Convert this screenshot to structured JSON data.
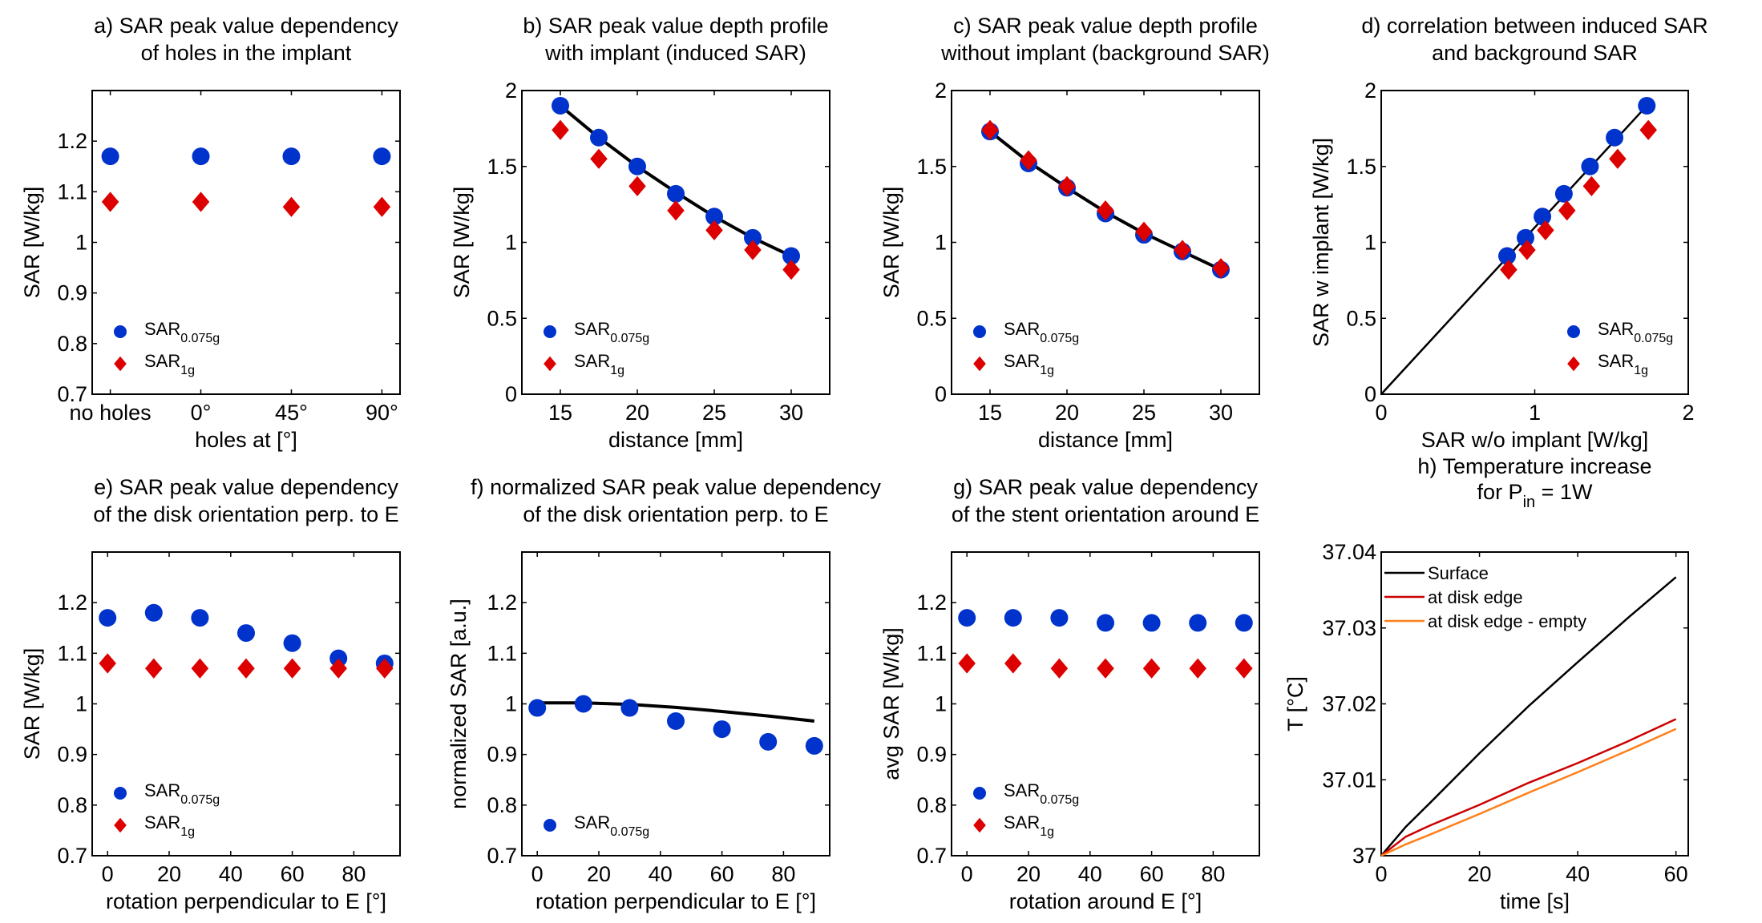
{
  "figure": {
    "colors": {
      "sar_small": "#0033cc",
      "sar_1g": "#dd0000",
      "fit_line": "#000000",
      "surface": "#000000",
      "disk_edge": "#cc0000",
      "disk_edge_empty": "#ff7f1a"
    }
  },
  "chart_data": [
    {
      "id": "a",
      "type": "scatter",
      "title": [
        "a) SAR peak value dependency",
        "of holes in the implant"
      ],
      "xlabel": "holes at [°]",
      "ylabel": "SAR [W/kg]",
      "categories": [
        "no holes",
        "0°",
        "45°",
        "90°"
      ],
      "xlim": [
        0.8,
        4.2
      ],
      "ylim": [
        0.7,
        1.3
      ],
      "yticks": [
        0.7,
        0.8,
        0.9,
        1,
        1.1,
        1.2
      ],
      "ytick_labels": [
        "0.7",
        "0.8",
        "0.9",
        "1",
        "1.1",
        "1.2"
      ],
      "x": [
        1,
        2,
        3,
        4
      ],
      "series": [
        {
          "name": "SAR",
          "sub": "0.075g",
          "marker": "circle",
          "color_key": "sar_small",
          "values": [
            1.17,
            1.17,
            1.17,
            1.17
          ]
        },
        {
          "name": "SAR",
          "sub": "1g",
          "marker": "diamond",
          "color_key": "sar_1g",
          "values": [
            1.08,
            1.08,
            1.07,
            1.07
          ]
        }
      ],
      "legend": "bottom-left",
      "grid": false
    },
    {
      "id": "b",
      "type": "scatter",
      "title": [
        "b) SAR peak value depth profile",
        "with implant (induced SAR)"
      ],
      "xlabel": "distance [mm]",
      "ylabel": "SAR [W/kg]",
      "xlim": [
        12.5,
        32.5
      ],
      "ylim": [
        0,
        2
      ],
      "xticks": [
        15,
        20,
        25,
        30
      ],
      "xtick_labels": [
        "15",
        "20",
        "25",
        "30"
      ],
      "yticks": [
        0,
        0.5,
        1,
        1.5,
        2
      ],
      "ytick_labels": [
        "0",
        "0.5",
        "1",
        "1.5",
        "2"
      ],
      "x": [
        15,
        17.5,
        20,
        22.5,
        25,
        27.5,
        30
      ],
      "series": [
        {
          "name": "SAR",
          "sub": "0.075g",
          "marker": "circle",
          "color_key": "sar_small",
          "values": [
            1.9,
            1.69,
            1.5,
            1.32,
            1.17,
            1.03,
            0.91
          ]
        },
        {
          "name": "SAR",
          "sub": "1g",
          "marker": "diamond",
          "color_key": "sar_1g",
          "values": [
            1.74,
            1.55,
            1.37,
            1.21,
            1.08,
            0.95,
            0.82
          ]
        }
      ],
      "fit_line": {
        "x": [
          15,
          17.5,
          20,
          22.5,
          25,
          27.5,
          30
        ],
        "y": [
          1.9,
          1.69,
          1.5,
          1.33,
          1.17,
          1.03,
          0.91
        ]
      },
      "legend": "bottom-left",
      "grid": false
    },
    {
      "id": "c",
      "type": "scatter",
      "title": [
        "c) SAR peak value depth profile",
        "without implant (background SAR)"
      ],
      "xlabel": "distance [mm]",
      "ylabel": "SAR [W/kg]",
      "xlim": [
        12.5,
        32.5
      ],
      "ylim": [
        0,
        2
      ],
      "xticks": [
        15,
        20,
        25,
        30
      ],
      "xtick_labels": [
        "15",
        "20",
        "25",
        "30"
      ],
      "yticks": [
        0,
        0.5,
        1,
        1.5,
        2
      ],
      "ytick_labels": [
        "0",
        "0.5",
        "1",
        "1.5",
        "2"
      ],
      "x": [
        15,
        17.5,
        20,
        22.5,
        25,
        27.5,
        30
      ],
      "series": [
        {
          "name": "SAR",
          "sub": "0.075g",
          "marker": "circle",
          "color_key": "sar_small",
          "values": [
            1.73,
            1.52,
            1.36,
            1.19,
            1.05,
            0.94,
            0.82
          ]
        },
        {
          "name": "SAR",
          "sub": "1g",
          "marker": "diamond",
          "color_key": "sar_1g",
          "values": [
            1.74,
            1.54,
            1.37,
            1.21,
            1.07,
            0.95,
            0.83
          ]
        }
      ],
      "fit_line": {
        "x": [
          15,
          17.5,
          20,
          22.5,
          25,
          27.5,
          30
        ],
        "y": [
          1.73,
          1.53,
          1.36,
          1.2,
          1.06,
          0.94,
          0.82
        ]
      },
      "legend": "bottom-left",
      "grid": false
    },
    {
      "id": "d",
      "type": "scatter",
      "title": [
        "d) correlation between induced SAR",
        "and background SAR"
      ],
      "xlabel": "SAR w/o implant [W/kg]",
      "ylabel": "SAR w implant [W/kg]",
      "xlim": [
        0,
        2
      ],
      "ylim": [
        0,
        2
      ],
      "xticks": [
        0,
        1,
        2
      ],
      "xtick_labels": [
        "0",
        "1",
        "2"
      ],
      "yticks": [
        0,
        0.5,
        1,
        1.5,
        2
      ],
      "ytick_labels": [
        "0",
        "0.5",
        "1",
        "1.5",
        "2"
      ],
      "series": [
        {
          "name": "SAR",
          "sub": "0.075g",
          "marker": "circle",
          "color_key": "sar_small",
          "x": [
            0.82,
            0.94,
            1.05,
            1.19,
            1.36,
            1.52,
            1.73
          ],
          "values": [
            0.91,
            1.03,
            1.17,
            1.32,
            1.5,
            1.69,
            1.9
          ]
        },
        {
          "name": "SAR",
          "sub": "1g",
          "marker": "diamond",
          "color_key": "sar_1g",
          "x": [
            0.83,
            0.95,
            1.07,
            1.21,
            1.37,
            1.54,
            1.74
          ],
          "values": [
            0.82,
            0.95,
            1.08,
            1.21,
            1.37,
            1.55,
            1.74
          ]
        }
      ],
      "fit_line": {
        "x": [
          0,
          1.73
        ],
        "y": [
          0,
          1.9
        ]
      },
      "legend": "bottom-right",
      "grid": false
    },
    {
      "id": "e",
      "type": "scatter",
      "title": [
        "e) SAR peak value dependency",
        "of the disk orientation perp. to E"
      ],
      "xlabel": "rotation perpendicular to E [°]",
      "ylabel": "SAR [W/kg]",
      "xlim": [
        -5,
        95
      ],
      "ylim": [
        0.7,
        1.3
      ],
      "xticks": [
        0,
        20,
        40,
        60,
        80
      ],
      "xtick_labels": [
        "0",
        "20",
        "40",
        "60",
        "80"
      ],
      "yticks": [
        0.7,
        0.8,
        0.9,
        1,
        1.1,
        1.2
      ],
      "ytick_labels": [
        "0.7",
        "0.8",
        "0.9",
        "1",
        "1.1",
        "1.2"
      ],
      "x": [
        0,
        15,
        30,
        45,
        60,
        75,
        90
      ],
      "series": [
        {
          "name": "SAR",
          "sub": "0.075g",
          "marker": "circle",
          "color_key": "sar_small",
          "values": [
            1.17,
            1.18,
            1.17,
            1.14,
            1.12,
            1.09,
            1.08
          ]
        },
        {
          "name": "SAR",
          "sub": "1g",
          "marker": "diamond",
          "color_key": "sar_1g",
          "values": [
            1.08,
            1.07,
            1.07,
            1.07,
            1.07,
            1.07,
            1.07
          ]
        }
      ],
      "legend": "bottom-left",
      "grid": false
    },
    {
      "id": "f",
      "type": "scatter",
      "title": [
        "f) normalized SAR peak value dependency",
        "of the disk orientation perp. to E"
      ],
      "xlabel": "rotation perpendicular to E [°]",
      "ylabel": "normalized SAR [a.u.]",
      "xlim": [
        -5,
        95
      ],
      "ylim": [
        0.7,
        1.3
      ],
      "xticks": [
        0,
        20,
        40,
        60,
        80
      ],
      "xtick_labels": [
        "0",
        "20",
        "40",
        "60",
        "80"
      ],
      "yticks": [
        0.7,
        0.8,
        0.9,
        1,
        1.1,
        1.2
      ],
      "ytick_labels": [
        "0.7",
        "0.8",
        "0.9",
        "1",
        "1.1",
        "1.2"
      ],
      "x": [
        0,
        15,
        30,
        45,
        60,
        75,
        90
      ],
      "series": [
        {
          "name": "SAR",
          "sub": "0.075g",
          "marker": "circle",
          "color_key": "sar_small",
          "values": [
            0.992,
            1.0,
            0.992,
            0.966,
            0.95,
            0.925,
            0.917
          ]
        }
      ],
      "fit_line": {
        "x": [
          0,
          15,
          30,
          45,
          60,
          75,
          90
        ],
        "y": [
          1.002,
          1.002,
          0.999,
          0.993,
          0.985,
          0.976,
          0.966
        ]
      },
      "legend": "bottom-left",
      "grid": false
    },
    {
      "id": "g",
      "type": "scatter",
      "title": [
        "g) SAR peak value dependency",
        "of the stent orientation around E"
      ],
      "xlabel": "rotation around E [°]",
      "ylabel": "avg SAR [W/kg]",
      "xlim": [
        -5,
        95
      ],
      "ylim": [
        0.7,
        1.3
      ],
      "xticks": [
        0,
        20,
        40,
        60,
        80
      ],
      "xtick_labels": [
        "0",
        "20",
        "40",
        "60",
        "80"
      ],
      "yticks": [
        0.7,
        0.8,
        0.9,
        1,
        1.1,
        1.2
      ],
      "ytick_labels": [
        "0.7",
        "0.8",
        "0.9",
        "1",
        "1.1",
        "1.2"
      ],
      "x": [
        0,
        15,
        30,
        45,
        60,
        75,
        90
      ],
      "series": [
        {
          "name": "SAR",
          "sub": "0.075g",
          "marker": "circle",
          "color_key": "sar_small",
          "values": [
            1.17,
            1.17,
            1.17,
            1.16,
            1.16,
            1.16,
            1.16
          ]
        },
        {
          "name": "SAR",
          "sub": "1g",
          "marker": "diamond",
          "color_key": "sar_1g",
          "values": [
            1.08,
            1.08,
            1.07,
            1.07,
            1.07,
            1.07,
            1.07
          ]
        }
      ],
      "legend": "bottom-left",
      "grid": false
    },
    {
      "id": "h",
      "type": "line",
      "title": [
        "h) Temperature increase",
        "for P",
        "in",
        " = 1W"
      ],
      "xlabel": "time [s]",
      "ylabel": "T [°C]",
      "xlim": [
        0,
        62.5
      ],
      "ylim": [
        37,
        37.04
      ],
      "xticks": [
        0,
        20,
        40,
        60
      ],
      "xtick_labels": [
        "0",
        "20",
        "40",
        "60"
      ],
      "yticks": [
        37,
        37.01,
        37.02,
        37.03,
        37.04
      ],
      "ytick_labels": [
        "37",
        "37.01",
        "37.02",
        "37.03",
        "37.04"
      ],
      "x": [
        0,
        5,
        10,
        20,
        30,
        40,
        50,
        60
      ],
      "series": [
        {
          "name": "Surface",
          "color_key": "surface",
          "values": [
            37.0,
            37.0038,
            37.007,
            37.0135,
            37.0197,
            37.0255,
            37.0312,
            37.0367
          ]
        },
        {
          "name": "at disk edge",
          "color_key": "disk_edge",
          "values": [
            37.0,
            37.0025,
            37.004,
            37.0067,
            37.0096,
            37.0122,
            37.015,
            37.018
          ]
        },
        {
          "name": "at disk edge - empty",
          "color_key": "disk_edge_empty",
          "values": [
            37.0,
            37.0015,
            37.0028,
            37.0055,
            37.0083,
            37.011,
            37.0138,
            37.0167
          ]
        }
      ],
      "legend": "top-left",
      "grid": false
    }
  ]
}
